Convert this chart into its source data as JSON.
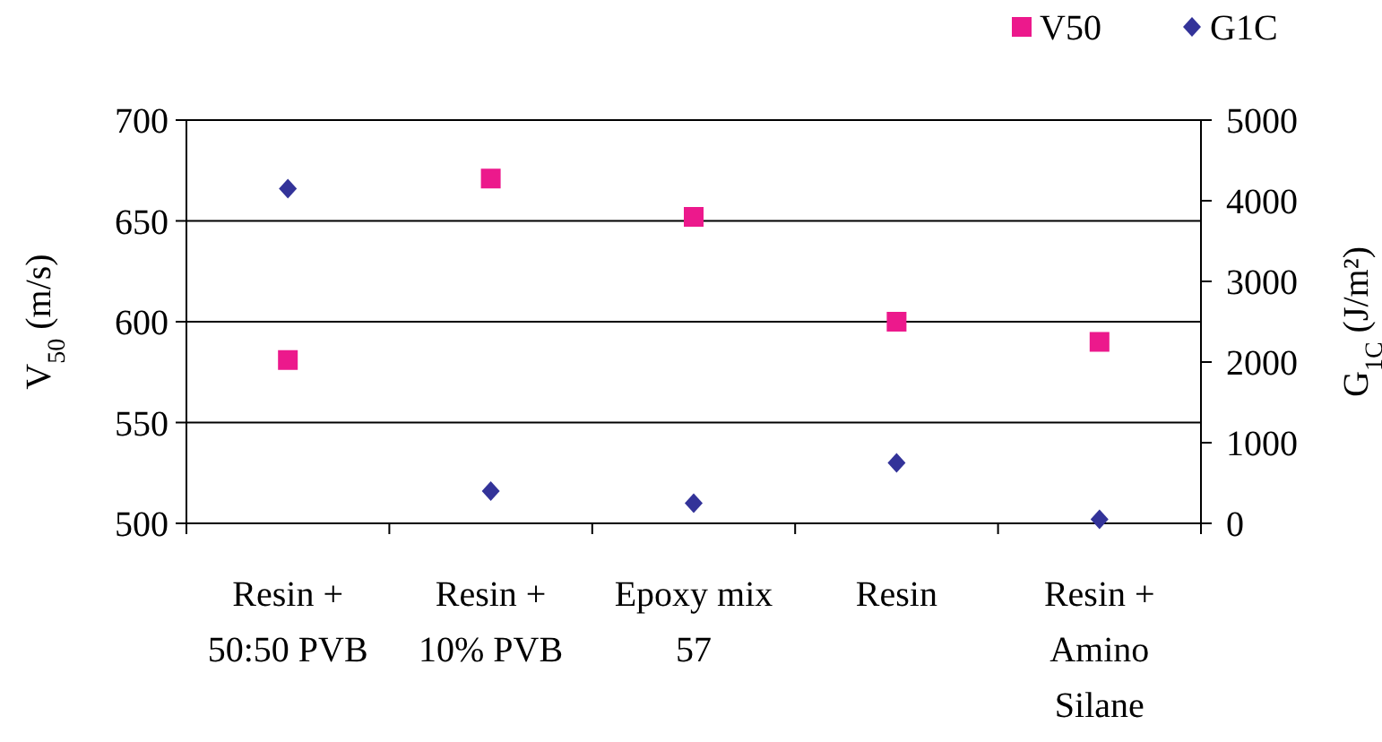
{
  "chart_data": {
    "type": "scatter",
    "categories": [
      "Resin +\n50:50 PVB",
      "Resin +\n10% PVB",
      "Epoxy mix\n57",
      "Resin",
      "Resin +\nAmino\nSilane"
    ],
    "ylabel": "V$_{50}$ (m/s)",
    "y2label": "G$_{1C}$ (J/m²)",
    "ylim": [
      500,
      700
    ],
    "yticks": [
      500,
      550,
      600,
      650,
      700
    ],
    "y2lim": [
      0,
      5000
    ],
    "y2ticks": [
      0,
      1000,
      2000,
      3000,
      4000,
      5000
    ],
    "grid": "y",
    "legend": "top right",
    "series": [
      {
        "name": "V50",
        "color": "#ec198c",
        "marker": "square",
        "values": [
          581,
          671,
          652,
          600,
          590
        ]
      },
      {
        "name": "G1C",
        "color": "#333399",
        "marker": "diamond",
        "axis": "y2",
        "values": [
          4150,
          400,
          250,
          750,
          50
        ]
      }
    ]
  }
}
